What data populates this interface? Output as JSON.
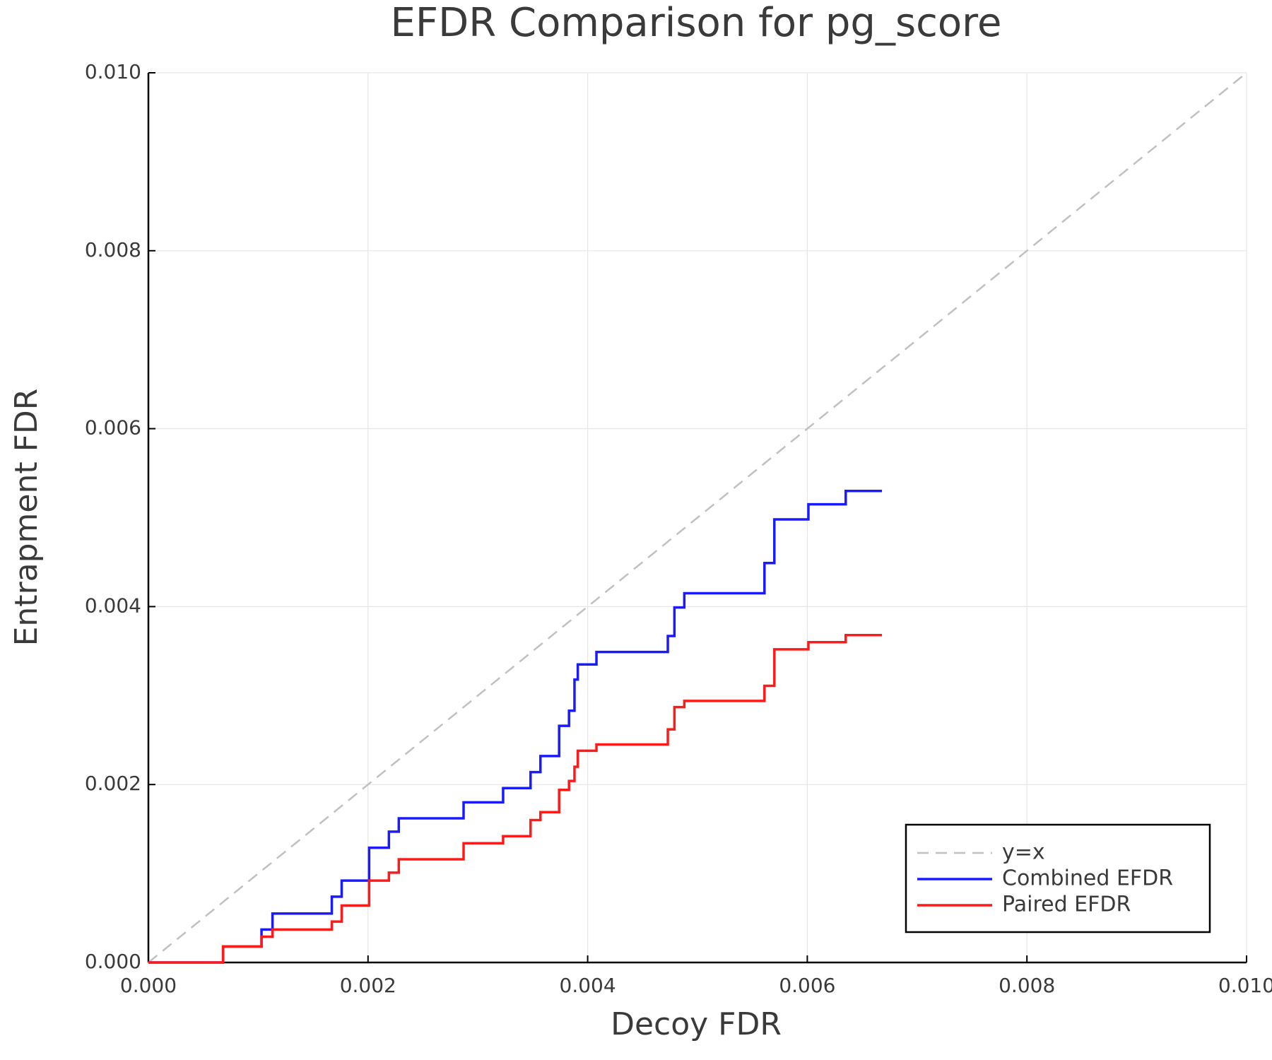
{
  "chart_data": {
    "type": "line",
    "title": "EFDR Comparison for pg_score",
    "x_label": "Decoy FDR",
    "y_label": "Entrapment FDR",
    "xlim": [
      0,
      0.01
    ],
    "ylim": [
      0,
      0.01
    ],
    "xticks": [
      {
        "value": 0,
        "label": "0.000"
      },
      {
        "value": 0.002,
        "label": "0.002"
      },
      {
        "value": 0.004,
        "label": "0.004"
      },
      {
        "value": 0.006,
        "label": "0.006"
      },
      {
        "value": 0.008,
        "label": "0.008"
      },
      {
        "value": 0.01,
        "label": "0.010"
      }
    ],
    "yticks": [
      {
        "value": 0,
        "label": "0.000"
      },
      {
        "value": 0.002,
        "label": "0.002"
      },
      {
        "value": 0.004,
        "label": "0.004"
      },
      {
        "value": 0.006,
        "label": "0.006"
      },
      {
        "value": 0.008,
        "label": "0.008"
      },
      {
        "value": 0.01,
        "label": "0.010"
      }
    ],
    "grid": true,
    "legend": "bottom-right",
    "x": [
      0,
      0.00068,
      0.00068,
      0.00103,
      0.00103,
      0.00113,
      0.00113,
      0.00167,
      0.00167,
      0.00176,
      0.00176,
      0.00201,
      0.00201,
      0.00219,
      0.00219,
      0.00228,
      0.00228,
      0.00287,
      0.00287,
      0.00323,
      0.00323,
      0.00348,
      0.00348,
      0.00357,
      0.00357,
      0.00374,
      0.00374,
      0.00383,
      0.00383,
      0.00388,
      0.00388,
      0.00391,
      0.00391,
      0.00408,
      0.00408,
      0.00473,
      0.00473,
      0.00479,
      0.00479,
      0.00488,
      0.00488,
      0.00561,
      0.00561,
      0.0057,
      0.0057,
      0.00601,
      0.00601,
      0.00635,
      0.00635,
      0.00668
    ],
    "series": [
      {
        "name": "y=x",
        "color": "#c0c0c0",
        "dash": true,
        "x": [
          0,
          0.01
        ],
        "values": [
          0,
          0.01
        ]
      },
      {
        "name": "Combined EFDR",
        "color": "#1a1aff",
        "values": [
          0,
          0,
          0.00018,
          0.00018,
          0.00037,
          0.00037,
          0.00055,
          0.00055,
          0.00074,
          0.00074,
          0.00092,
          0.00092,
          0.00129,
          0.00129,
          0.00147,
          0.00147,
          0.00162,
          0.00162,
          0.0018,
          0.0018,
          0.00196,
          0.00196,
          0.00214,
          0.00214,
          0.00232,
          0.00232,
          0.00266,
          0.00266,
          0.00283,
          0.00283,
          0.00318,
          0.00318,
          0.00335,
          0.00335,
          0.00349,
          0.00349,
          0.00367,
          0.00367,
          0.00399,
          0.00399,
          0.00415,
          0.00415,
          0.00449,
          0.00449,
          0.00498,
          0.00498,
          0.00515,
          0.00515,
          0.0053,
          0.0053
        ]
      },
      {
        "name": "Paired EFDR",
        "color": "#ff1a1a",
        "values": [
          0,
          0,
          0.00018,
          0.00018,
          0.00029,
          0.00029,
          0.00037,
          0.00037,
          0.00046,
          0.00046,
          0.00064,
          0.00064,
          0.00092,
          0.00092,
          0.00101,
          0.00101,
          0.00116,
          0.00116,
          0.00134,
          0.00134,
          0.00142,
          0.00142,
          0.0016,
          0.0016,
          0.00169,
          0.00169,
          0.00194,
          0.00194,
          0.00204,
          0.00204,
          0.0022,
          0.0022,
          0.00238,
          0.00238,
          0.00245,
          0.00245,
          0.00262,
          0.00262,
          0.00287,
          0.00287,
          0.00294,
          0.00294,
          0.00311,
          0.00311,
          0.00352,
          0.00352,
          0.0036,
          0.0036,
          0.00368,
          0.00368
        ]
      }
    ]
  }
}
